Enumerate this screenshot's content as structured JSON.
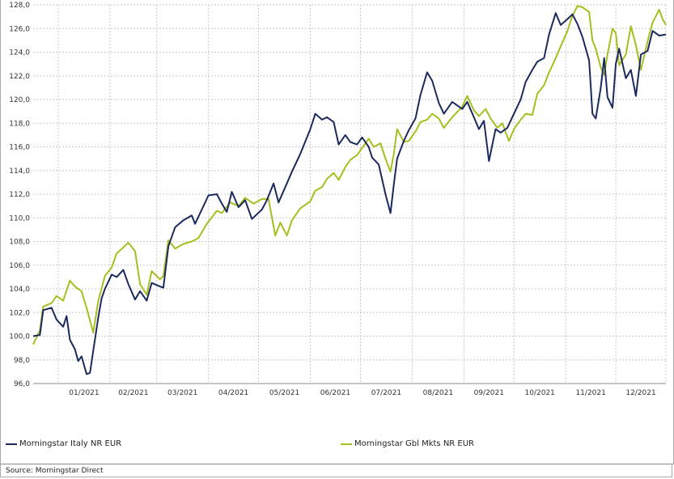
{
  "chart_data": {
    "type": "line",
    "title": "",
    "xlabel": "",
    "ylabel": "",
    "ylim": [
      96,
      128
    ],
    "y_ticks": [
      "96,0",
      "98,0",
      "100,0",
      "102,0",
      "104,0",
      "106,0",
      "108,0",
      "110,0",
      "112,0",
      "114,0",
      "116,0",
      "118,0",
      "120,0",
      "122,0",
      "124,0",
      "126,0",
      "128,0"
    ],
    "x_ticks": [
      "01/2021",
      "02/2021",
      "03/2021",
      "04/2021",
      "05/2021",
      "06/2021",
      "07/2021",
      "08/2021",
      "09/2021",
      "10/2021",
      "11/2021",
      "12/2021"
    ],
    "x_range": [
      "2020-12-17",
      "2021-12-31"
    ],
    "grid": true,
    "legend_position": "bottom",
    "series": [
      {
        "name": "Morningstar Italy NR EUR",
        "color": "#1a2a5e",
        "points": [
          [
            "2020-12-17",
            100.0
          ],
          [
            "2020-12-21",
            100.1
          ],
          [
            "2020-12-23",
            102.2
          ],
          [
            "2020-12-28",
            102.4
          ],
          [
            "2020-12-31",
            101.4
          ],
          [
            "2021-01-04",
            100.8
          ],
          [
            "2021-01-06",
            101.7
          ],
          [
            "2021-01-08",
            99.7
          ],
          [
            "2021-01-11",
            98.9
          ],
          [
            "2021-01-13",
            97.9
          ],
          [
            "2021-01-15",
            98.3
          ],
          [
            "2021-01-18",
            96.8
          ],
          [
            "2021-01-20",
            96.9
          ],
          [
            "2021-01-22",
            98.8
          ],
          [
            "2021-01-25",
            101.6
          ],
          [
            "2021-01-27",
            103.2
          ],
          [
            "2021-01-29",
            104.0
          ],
          [
            "2021-02-02",
            105.2
          ],
          [
            "2021-02-05",
            105.0
          ],
          [
            "2021-02-09",
            105.6
          ],
          [
            "2021-02-12",
            104.4
          ],
          [
            "2021-02-16",
            103.1
          ],
          [
            "2021-02-19",
            103.8
          ],
          [
            "2021-02-23",
            103.0
          ],
          [
            "2021-02-26",
            104.5
          ],
          [
            "2021-03-03",
            104.2
          ],
          [
            "2021-03-05",
            104.1
          ],
          [
            "2021-03-08",
            107.6
          ],
          [
            "2021-03-12",
            109.2
          ],
          [
            "2021-03-17",
            109.8
          ],
          [
            "2021-03-22",
            110.2
          ],
          [
            "2021-03-24",
            109.5
          ],
          [
            "2021-03-29",
            111.0
          ],
          [
            "2021-04-01",
            111.9
          ],
          [
            "2021-04-06",
            112.0
          ],
          [
            "2021-04-09",
            111.2
          ],
          [
            "2021-04-12",
            110.5
          ],
          [
            "2021-04-15",
            112.2
          ],
          [
            "2021-04-19",
            110.9
          ],
          [
            "2021-04-23",
            111.5
          ],
          [
            "2021-04-27",
            109.9
          ],
          [
            "2021-05-03",
            110.7
          ],
          [
            "2021-05-06",
            111.5
          ],
          [
            "2021-05-10",
            112.9
          ],
          [
            "2021-05-13",
            111.3
          ],
          [
            "2021-05-17",
            112.6
          ],
          [
            "2021-05-21",
            113.9
          ],
          [
            "2021-05-26",
            115.4
          ],
          [
            "2021-06-01",
            117.5
          ],
          [
            "2021-06-04",
            118.8
          ],
          [
            "2021-06-08",
            118.3
          ],
          [
            "2021-06-11",
            118.5
          ],
          [
            "2021-06-15",
            118.1
          ],
          [
            "2021-06-18",
            116.2
          ],
          [
            "2021-06-22",
            117.0
          ],
          [
            "2021-06-25",
            116.4
          ],
          [
            "2021-06-29",
            116.2
          ],
          [
            "2021-07-02",
            116.8
          ],
          [
            "2021-07-06",
            116.0
          ],
          [
            "2021-07-08",
            115.1
          ],
          [
            "2021-07-12",
            114.5
          ],
          [
            "2021-07-16",
            112.0
          ],
          [
            "2021-07-19",
            110.4
          ],
          [
            "2021-07-21",
            112.8
          ],
          [
            "2021-07-23",
            115.0
          ],
          [
            "2021-07-27",
            116.5
          ],
          [
            "2021-07-30",
            117.4
          ],
          [
            "2021-08-03",
            118.4
          ],
          [
            "2021-08-06",
            120.4
          ],
          [
            "2021-08-10",
            122.3
          ],
          [
            "2021-08-13",
            121.6
          ],
          [
            "2021-08-17",
            119.7
          ],
          [
            "2021-08-20",
            118.8
          ],
          [
            "2021-08-25",
            119.8
          ],
          [
            "2021-08-31",
            119.2
          ],
          [
            "2021-09-03",
            119.8
          ],
          [
            "2021-09-07",
            118.5
          ],
          [
            "2021-09-10",
            117.5
          ],
          [
            "2021-09-13",
            118.2
          ],
          [
            "2021-09-16",
            114.8
          ],
          [
            "2021-09-20",
            117.5
          ],
          [
            "2021-09-23",
            117.2
          ],
          [
            "2021-09-27",
            117.6
          ],
          [
            "2021-10-01",
            118.8
          ],
          [
            "2021-10-05",
            120.0
          ],
          [
            "2021-10-08",
            121.5
          ],
          [
            "2021-10-12",
            122.5
          ],
          [
            "2021-10-15",
            123.2
          ],
          [
            "2021-10-19",
            123.5
          ],
          [
            "2021-10-22",
            125.5
          ],
          [
            "2021-10-26",
            127.3
          ],
          [
            "2021-10-29",
            126.3
          ],
          [
            "2021-11-02",
            126.8
          ],
          [
            "2021-11-05",
            127.2
          ],
          [
            "2021-11-08",
            126.4
          ],
          [
            "2021-11-11",
            125.3
          ],
          [
            "2021-11-15",
            123.3
          ],
          [
            "2021-11-17",
            118.8
          ],
          [
            "2021-11-19",
            118.4
          ],
          [
            "2021-11-22",
            121.0
          ],
          [
            "2021-11-24",
            123.5
          ],
          [
            "2021-11-26",
            120.2
          ],
          [
            "2021-11-29",
            119.3
          ],
          [
            "2021-12-01",
            123.0
          ],
          [
            "2021-12-03",
            124.3
          ],
          [
            "2021-12-07",
            121.8
          ],
          [
            "2021-12-10",
            122.5
          ],
          [
            "2021-12-13",
            120.3
          ],
          [
            "2021-12-16",
            123.8
          ],
          [
            "2021-12-20",
            124.1
          ],
          [
            "2021-12-23",
            125.8
          ],
          [
            "2021-12-27",
            125.4
          ],
          [
            "2021-12-31",
            125.5
          ]
        ]
      },
      {
        "name": "Morningstar Gbl Mkts NR EUR",
        "color": "#a4bf1f",
        "points": [
          [
            "2020-12-17",
            99.3
          ],
          [
            "2020-12-21",
            100.5
          ],
          [
            "2020-12-23",
            102.5
          ],
          [
            "2020-12-28",
            102.8
          ],
          [
            "2020-12-31",
            103.4
          ],
          [
            "2021-01-04",
            103.0
          ],
          [
            "2021-01-08",
            104.7
          ],
          [
            "2021-01-11",
            104.2
          ],
          [
            "2021-01-15",
            103.8
          ],
          [
            "2021-01-18",
            102.4
          ],
          [
            "2021-01-22",
            100.3
          ],
          [
            "2021-01-25",
            103.0
          ],
          [
            "2021-01-29",
            105.1
          ],
          [
            "2021-02-02",
            105.8
          ],
          [
            "2021-02-05",
            107.0
          ],
          [
            "2021-02-09",
            107.5
          ],
          [
            "2021-02-12",
            107.9
          ],
          [
            "2021-02-16",
            107.2
          ],
          [
            "2021-02-19",
            104.4
          ],
          [
            "2021-02-23",
            103.5
          ],
          [
            "2021-02-26",
            105.5
          ],
          [
            "2021-03-03",
            104.8
          ],
          [
            "2021-03-05",
            105.1
          ],
          [
            "2021-03-08",
            108.1
          ],
          [
            "2021-03-12",
            107.4
          ],
          [
            "2021-03-17",
            107.8
          ],
          [
            "2021-03-22",
            108.0
          ],
          [
            "2021-03-26",
            108.3
          ],
          [
            "2021-03-31",
            109.5
          ],
          [
            "2021-04-06",
            110.6
          ],
          [
            "2021-04-09",
            110.4
          ],
          [
            "2021-04-14",
            111.3
          ],
          [
            "2021-04-19",
            111.0
          ],
          [
            "2021-04-23",
            111.7
          ],
          [
            "2021-04-28",
            111.2
          ],
          [
            "2021-05-03",
            111.6
          ],
          [
            "2021-05-07",
            111.6
          ],
          [
            "2021-05-11",
            108.5
          ],
          [
            "2021-05-14",
            109.6
          ],
          [
            "2021-05-18",
            108.5
          ],
          [
            "2021-05-21",
            109.8
          ],
          [
            "2021-05-26",
            110.8
          ],
          [
            "2021-06-01",
            111.4
          ],
          [
            "2021-06-04",
            112.3
          ],
          [
            "2021-06-08",
            112.6
          ],
          [
            "2021-06-11",
            113.3
          ],
          [
            "2021-06-15",
            113.8
          ],
          [
            "2021-06-18",
            113.2
          ],
          [
            "2021-06-22",
            114.3
          ],
          [
            "2021-06-25",
            114.9
          ],
          [
            "2021-06-29",
            115.3
          ],
          [
            "2021-07-02",
            115.9
          ],
          [
            "2021-07-06",
            116.7
          ],
          [
            "2021-07-09",
            116.0
          ],
          [
            "2021-07-13",
            116.3
          ],
          [
            "2021-07-16",
            115.0
          ],
          [
            "2021-07-19",
            113.9
          ],
          [
            "2021-07-21",
            115.4
          ],
          [
            "2021-07-23",
            117.5
          ],
          [
            "2021-07-27",
            116.4
          ],
          [
            "2021-07-30",
            116.5
          ],
          [
            "2021-08-03",
            117.3
          ],
          [
            "2021-08-06",
            118.1
          ],
          [
            "2021-08-10",
            118.3
          ],
          [
            "2021-08-13",
            118.8
          ],
          [
            "2021-08-17",
            118.4
          ],
          [
            "2021-08-20",
            117.6
          ],
          [
            "2021-08-25",
            118.5
          ],
          [
            "2021-08-31",
            119.4
          ],
          [
            "2021-09-03",
            120.3
          ],
          [
            "2021-09-07",
            119.1
          ],
          [
            "2021-09-10",
            118.6
          ],
          [
            "2021-09-14",
            119.2
          ],
          [
            "2021-09-17",
            118.4
          ],
          [
            "2021-09-21",
            117.6
          ],
          [
            "2021-09-24",
            118.0
          ],
          [
            "2021-09-28",
            116.5
          ],
          [
            "2021-10-01",
            117.5
          ],
          [
            "2021-10-05",
            118.3
          ],
          [
            "2021-10-08",
            118.8
          ],
          [
            "2021-10-12",
            118.7
          ],
          [
            "2021-10-15",
            120.5
          ],
          [
            "2021-10-19",
            121.2
          ],
          [
            "2021-10-22",
            122.3
          ],
          [
            "2021-10-26",
            123.5
          ],
          [
            "2021-10-29",
            124.5
          ],
          [
            "2021-11-02",
            125.8
          ],
          [
            "2021-11-05",
            127.1
          ],
          [
            "2021-11-08",
            127.9
          ],
          [
            "2021-11-11",
            127.8
          ],
          [
            "2021-11-15",
            127.4
          ],
          [
            "2021-11-17",
            125.0
          ],
          [
            "2021-11-19",
            124.3
          ],
          [
            "2021-11-22",
            122.7
          ],
          [
            "2021-11-24",
            122.1
          ],
          [
            "2021-11-26",
            123.8
          ],
          [
            "2021-11-29",
            126.0
          ],
          [
            "2021-12-01",
            125.6
          ],
          [
            "2021-12-03",
            122.9
          ],
          [
            "2021-12-07",
            123.8
          ],
          [
            "2021-12-10",
            126.2
          ],
          [
            "2021-12-13",
            124.6
          ],
          [
            "2021-12-16",
            122.5
          ],
          [
            "2021-12-20",
            124.9
          ],
          [
            "2021-12-23",
            126.5
          ],
          [
            "2021-12-27",
            127.6
          ],
          [
            "2021-12-29",
            126.8
          ],
          [
            "2021-12-31",
            126.3
          ]
        ]
      }
    ]
  },
  "source_text": "Source: Morningstar Direct",
  "colors": {
    "grid": "#c8c8c8",
    "axis": "#888888",
    "italy": "#1a2a5e",
    "gbl": "#a4bf1f"
  }
}
